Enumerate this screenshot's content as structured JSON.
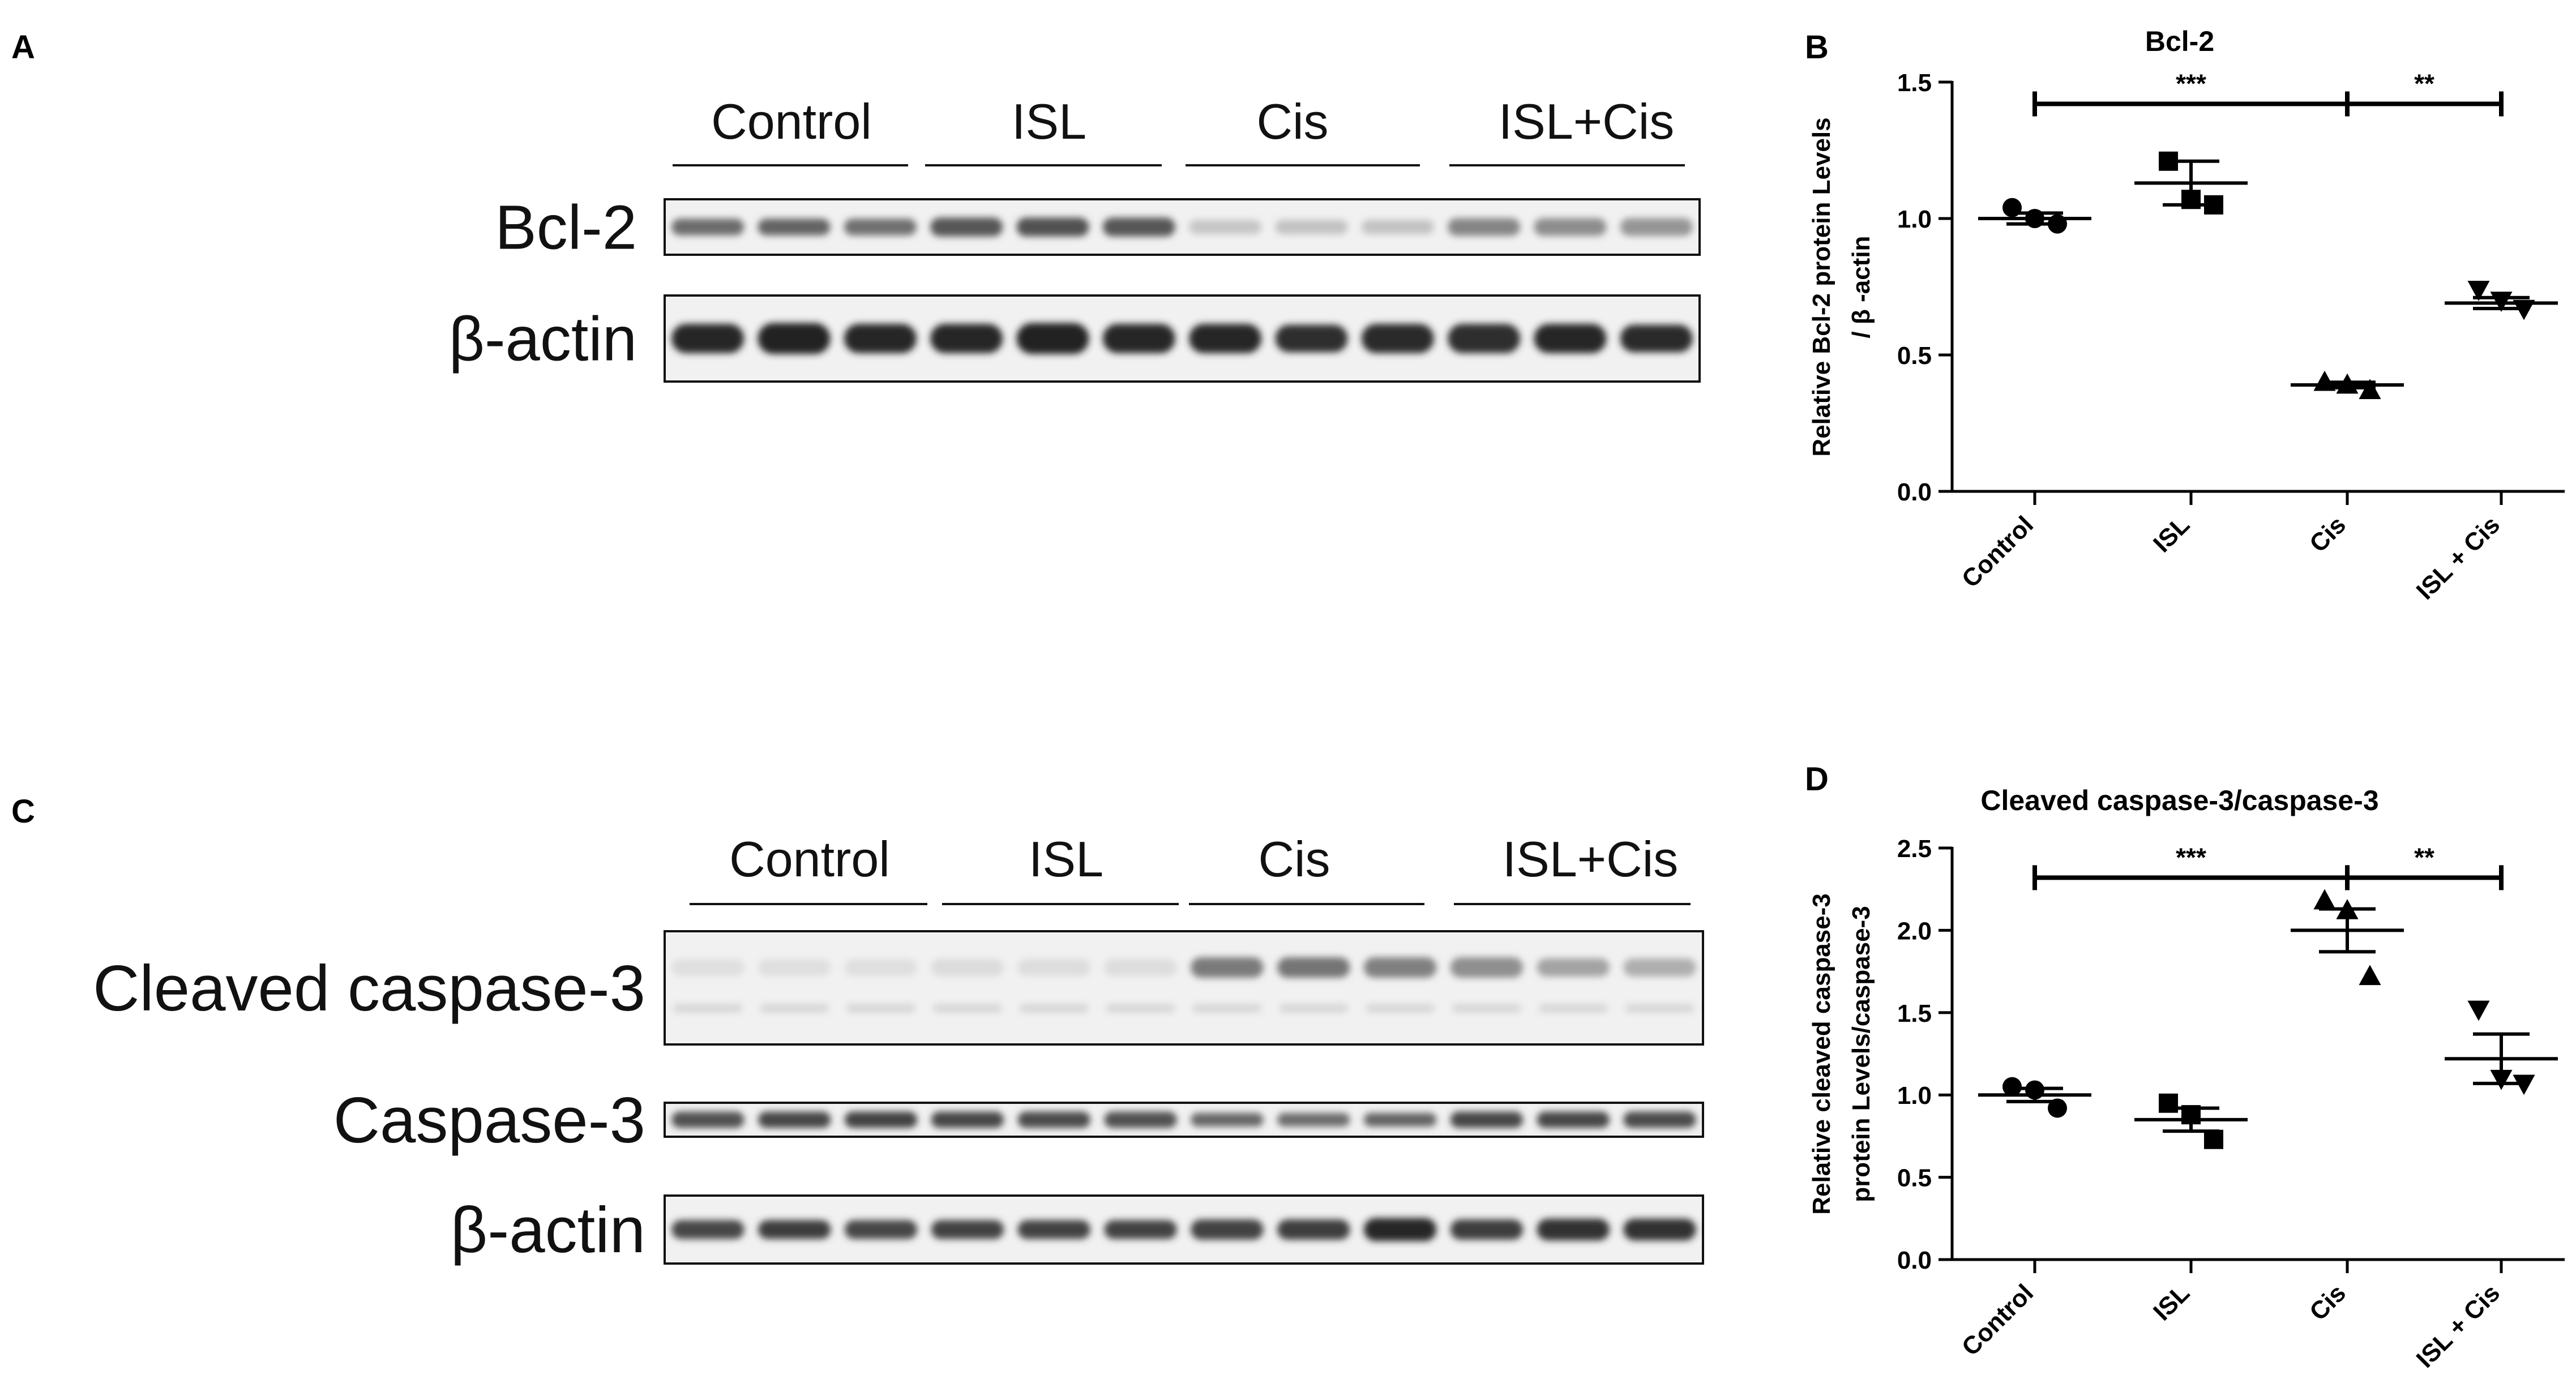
{
  "blot_a": {
    "panel_label": "A",
    "groups": [
      "Control",
      "ISL",
      "Cis",
      "ISL+Cis"
    ],
    "lanes_per_group": 3,
    "bands": [
      {
        "label": "Bcl-2",
        "intensity": [
          0.62,
          0.66,
          0.6,
          0.72,
          0.75,
          0.72,
          0.18,
          0.2,
          0.2,
          0.5,
          0.46,
          0.42
        ],
        "thickness": [
          0.3,
          0.3,
          0.3,
          0.34,
          0.34,
          0.34,
          0.26,
          0.26,
          0.26,
          0.32,
          0.32,
          0.32
        ]
      },
      {
        "label": "β-actin",
        "intensity": [
          0.95,
          0.98,
          0.95,
          0.95,
          0.97,
          0.95,
          0.96,
          0.92,
          0.94,
          0.92,
          0.95,
          0.93
        ],
        "thickness": [
          0.34,
          0.36,
          0.34,
          0.34,
          0.36,
          0.34,
          0.34,
          0.32,
          0.34,
          0.34,
          0.34,
          0.32
        ]
      }
    ]
  },
  "blot_c": {
    "panel_label": "C",
    "groups": [
      "Control",
      "ISL",
      "Cis",
      "ISL+Cis"
    ],
    "lanes_per_group": 3,
    "bands": [
      {
        "label": "Cleaved caspase-3",
        "intensity": [
          0.06,
          0.06,
          0.06,
          0.08,
          0.07,
          0.07,
          0.55,
          0.58,
          0.52,
          0.45,
          0.35,
          0.3
        ],
        "thickness": [
          0.15,
          0.15,
          0.15,
          0.15,
          0.15,
          0.15,
          0.18,
          0.18,
          0.18,
          0.18,
          0.16,
          0.16
        ]
      },
      {
        "label": "Caspase-3",
        "intensity": [
          0.75,
          0.8,
          0.82,
          0.8,
          0.78,
          0.75,
          0.65,
          0.62,
          0.66,
          0.8,
          0.8,
          0.78
        ],
        "thickness": [
          0.48,
          0.48,
          0.48,
          0.48,
          0.48,
          0.48,
          0.4,
          0.4,
          0.4,
          0.48,
          0.48,
          0.48
        ]
      },
      {
        "label": "β-actin",
        "intensity": [
          0.8,
          0.85,
          0.8,
          0.82,
          0.82,
          0.82,
          0.82,
          0.85,
          0.95,
          0.85,
          0.9,
          0.9
        ],
        "thickness": [
          0.28,
          0.28,
          0.28,
          0.28,
          0.28,
          0.28,
          0.3,
          0.3,
          0.34,
          0.3,
          0.32,
          0.32
        ]
      }
    ]
  },
  "chart_data": [
    {
      "panel_label": "B",
      "type": "scatter",
      "title": "Bcl-2",
      "ylabel_lines": [
        "Relative Bcl-2  protein Levels",
        "/ β -actin"
      ],
      "xlabel": "",
      "categories": [
        "Control",
        "ISL",
        "Cis",
        "ISL + Cis"
      ],
      "ylim": [
        0,
        1.5
      ],
      "yticks": [
        0.0,
        0.5,
        1.0,
        1.5
      ],
      "ytick_labels": [
        "0.0",
        "0.5",
        "1.0",
        "1.5"
      ],
      "markers": [
        "circle",
        "square",
        "triangle-up",
        "triangle-down"
      ],
      "points": [
        [
          1.04,
          1.0,
          0.98
        ],
        [
          1.21,
          1.07,
          1.05
        ],
        [
          0.4,
          0.39,
          0.37
        ],
        [
          0.74,
          0.7,
          0.67
        ]
      ],
      "mean": [
        1.0,
        1.13,
        0.39,
        0.69
      ],
      "sem": [
        0.02,
        0.08,
        0.01,
        0.02
      ],
      "significance": [
        {
          "from": 0,
          "to": 2,
          "y": 1.42,
          "label": "***"
        },
        {
          "from": 2,
          "to": 3,
          "y": 1.42,
          "label": "**"
        }
      ]
    },
    {
      "panel_label": "D",
      "type": "scatter",
      "title": "Cleaved caspase-3/caspase-3",
      "ylabel_lines": [
        "Relative cleaved caspase-3",
        "protein Levels/caspase-3"
      ],
      "xlabel": "",
      "categories": [
        "Control",
        "ISL",
        "Cis",
        "ISL + Cis"
      ],
      "ylim": [
        0,
        2.5
      ],
      "yticks": [
        0.0,
        0.5,
        1.0,
        1.5,
        2.0,
        2.5
      ],
      "ytick_labels": [
        "0.0",
        "0.5",
        "1.0",
        "1.5",
        "2.0",
        "2.5"
      ],
      "markers": [
        "circle",
        "square",
        "triangle-up",
        "triangle-down"
      ],
      "points": [
        [
          1.05,
          1.03,
          0.92
        ],
        [
          0.95,
          0.88,
          0.73
        ],
        [
          2.18,
          2.12,
          1.72
        ],
        [
          1.52,
          1.1,
          1.07
        ]
      ],
      "mean": [
        1.0,
        0.85,
        2.0,
        1.22
      ],
      "sem": [
        0.04,
        0.07,
        0.13,
        0.15
      ],
      "significance": [
        {
          "from": 0,
          "to": 2,
          "y": 2.32,
          "label": "***"
        },
        {
          "from": 2,
          "to": 3,
          "y": 2.32,
          "label": "**"
        }
      ]
    }
  ]
}
